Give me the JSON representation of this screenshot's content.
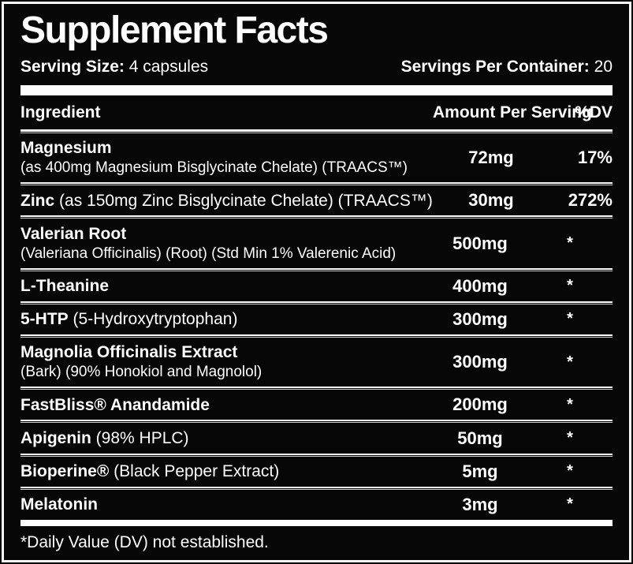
{
  "panel": {
    "title": "Supplement Facts",
    "serving": {
      "size_label": "Serving Size:",
      "size_value": "4 capsules",
      "container_label": "Servings Per Container:",
      "container_value": "20"
    },
    "columns": {
      "ingredient": "Ingredient",
      "amount": "Amount Per Serving",
      "dv": "%DV"
    },
    "rows": [
      {
        "name": "Magnesium",
        "detail_inline": "",
        "detail_below": "(as 400mg Magnesium Bisglycinate Chelate) (TRAACS™)",
        "amount": "72mg",
        "dv": "17%"
      },
      {
        "name": "Zinc",
        "detail_inline": "(as 150mg Zinc Bisglycinate Chelate) (TRAACS™)",
        "detail_below": "",
        "amount": "30mg",
        "dv": "272%"
      },
      {
        "name": "Valerian Root",
        "detail_inline": "",
        "detail_below": "(Valeriana Officinalis) (Root) (Std Min 1% Valerenic Acid)",
        "amount": "500mg",
        "dv": "*"
      },
      {
        "name": "L-Theanine",
        "detail_inline": "",
        "detail_below": "",
        "amount": "400mg",
        "dv": "*"
      },
      {
        "name": "5-HTP",
        "detail_inline": "(5-Hydroxytryptophan)",
        "detail_below": "",
        "amount": "300mg",
        "dv": "*"
      },
      {
        "name": "Magnolia Officinalis Extract",
        "detail_inline": "",
        "detail_below": "(Bark) (90% Honokiol and Magnolol)",
        "amount": "300mg",
        "dv": "*"
      },
      {
        "name": "FastBliss® Anandamide",
        "detail_inline": "",
        "detail_below": "",
        "amount": "200mg",
        "dv": "*"
      },
      {
        "name": "Apigenin",
        "detail_inline": "(98% HPLC)",
        "detail_below": "",
        "amount": "50mg",
        "dv": "*"
      },
      {
        "name": "Bioperine®",
        "detail_inline": "(Black Pepper Extract)",
        "detail_below": "",
        "amount": "5mg",
        "dv": "*"
      },
      {
        "name": "Melatonin",
        "detail_inline": "",
        "detail_below": "",
        "amount": "3mg",
        "dv": "*"
      }
    ],
    "footnote": "*Daily Value (DV) not established.",
    "colors": {
      "background": "#070707",
      "text": "#fdfdfd",
      "rule": "#fdfdfd"
    }
  }
}
